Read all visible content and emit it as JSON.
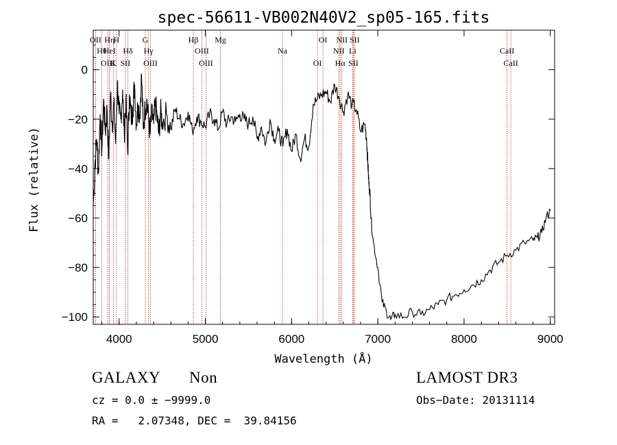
{
  "chart_data": {
    "type": "line",
    "title": "spec-56611-VB002N40V2_sp05-165.fits",
    "xlabel": "Wavelength (Å)",
    "ylabel": "Flux (relative)",
    "xlim": [
      3700,
      9050
    ],
    "ylim": [
      -103,
      16
    ],
    "xticks": [
      "4000",
      "5000",
      "6000",
      "7000",
      "8000",
      "9000"
    ],
    "yticks": [
      "0",
      "−20",
      "−40",
      "−60",
      "−80",
      "−100"
    ],
    "x": [
      3700,
      3720,
      3740,
      3760,
      3780,
      3800,
      3820,
      3840,
      3860,
      3880,
      3900,
      3920,
      3940,
      3960,
      3980,
      4000,
      4020,
      4040,
      4060,
      4080,
      4100,
      4120,
      4140,
      4160,
      4180,
      4200,
      4220,
      4240,
      4260,
      4280,
      4300,
      4320,
      4340,
      4360,
      4380,
      4400,
      4420,
      4440,
      4460,
      4480,
      4500,
      4550,
      4600,
      4650,
      4700,
      4750,
      4800,
      4850,
      4900,
      4950,
      5000,
      5050,
      5100,
      5150,
      5200,
      5250,
      5300,
      5350,
      5400,
      5450,
      5500,
      5550,
      5600,
      5650,
      5700,
      5750,
      5800,
      5850,
      5900,
      5950,
      6000,
      6050,
      6100,
      6150,
      6200,
      6250,
      6300,
      6350,
      6400,
      6450,
      6500,
      6550,
      6600,
      6650,
      6700,
      6750,
      6800,
      6850,
      6870,
      6880,
      6890,
      6900,
      6910,
      6920,
      6950,
      7000,
      7050,
      7100,
      7150,
      7200,
      7300,
      7400,
      7500,
      7600,
      7700,
      7800,
      7900,
      8000,
      8100,
      8200,
      8300,
      8400,
      8500,
      8600,
      8700,
      8800,
      8850,
      8900,
      8950,
      9000
    ],
    "y": [
      -55,
      -38,
      -28,
      -42,
      -18,
      -33,
      -12,
      -25,
      -16,
      -36,
      -10,
      -22,
      -14,
      -30,
      -5,
      -18,
      -20,
      -8,
      -26,
      -12,
      -34,
      -10,
      -20,
      -15,
      -6,
      -22,
      -14,
      -18,
      -2,
      -24,
      -16,
      -12,
      -20,
      -26,
      -18,
      -22,
      -14,
      -19,
      -26,
      -17,
      -21,
      -18,
      -24,
      -16,
      -20,
      -22,
      -17,
      -25,
      -19,
      -21,
      -23,
      -18,
      -20,
      -24,
      -17,
      -22,
      -19,
      -21,
      -18,
      -20,
      -22,
      -19,
      -28,
      -23,
      -30,
      -20,
      -28,
      -25,
      -31,
      -24,
      -33,
      -26,
      -36,
      -28,
      -31,
      -14,
      -12,
      -10,
      -9,
      -13,
      -6,
      -11,
      -17,
      -10,
      -14,
      -16,
      -25,
      -22,
      -28,
      -35,
      -42,
      -48,
      -50,
      -60,
      -70,
      -80,
      -94,
      -98,
      -101,
      -99,
      -100,
      -98,
      -99,
      -97,
      -95,
      -93,
      -91,
      -89,
      -87,
      -85,
      -81,
      -78,
      -75,
      -73,
      -70,
      -69,
      -68,
      -66,
      -60,
      -57
    ],
    "spectral_lines": [
      {
        "label": "OII",
        "wavelength": 3727
      },
      {
        "label": "Hθ",
        "wavelength": 3798
      },
      {
        "label": "OIII",
        "wavelength": 3869
      },
      {
        "label": "Hη",
        "wavelength": 3889
      },
      {
        "label": "HeI",
        "wavelength": 3889
      },
      {
        "label": "K",
        "wavelength": 3934
      },
      {
        "label": "H",
        "wavelength": 3969
      },
      {
        "label": "Hδ",
        "wavelength": 4102
      },
      {
        "label": "SII",
        "wavelength": 4072
      },
      {
        "label": "G",
        "wavelength": 4304
      },
      {
        "label": "Hγ",
        "wavelength": 4341
      },
      {
        "label": "OIII",
        "wavelength": 4363
      },
      {
        "label": "Hβ",
        "wavelength": 4861
      },
      {
        "label": "OIII",
        "wavelength": 4959
      },
      {
        "label": "OIII",
        "wavelength": 5007
      },
      {
        "label": "Mg",
        "wavelength": 5175
      },
      {
        "label": "Na",
        "wavelength": 5894
      },
      {
        "label": "OI",
        "wavelength": 6300
      },
      {
        "label": "OI",
        "wavelength": 6364
      },
      {
        "label": "NII",
        "wavelength": 6548
      },
      {
        "label": "Hα",
        "wavelength": 6563
      },
      {
        "label": "NII",
        "wavelength": 6583
      },
      {
        "label": "Li",
        "wavelength": 6708
      },
      {
        "label": "SII",
        "wavelength": 6716
      },
      {
        "label": "SII",
        "wavelength": 6731
      },
      {
        "label": "CaII",
        "wavelength": 8498
      },
      {
        "label": "CaII",
        "wavelength": 8542
      }
    ],
    "line_color": "#000000",
    "marker_color": "#b22222"
  },
  "info": {
    "object_class": "GALAXY",
    "subclass": "Non",
    "survey": "LAMOST DR3",
    "redshift": "cz = 0.0 ± −9999.0",
    "obs_date": "Obs−Date: 20131114",
    "coords": "RA =   2.07348, DEC =  39.84156"
  }
}
